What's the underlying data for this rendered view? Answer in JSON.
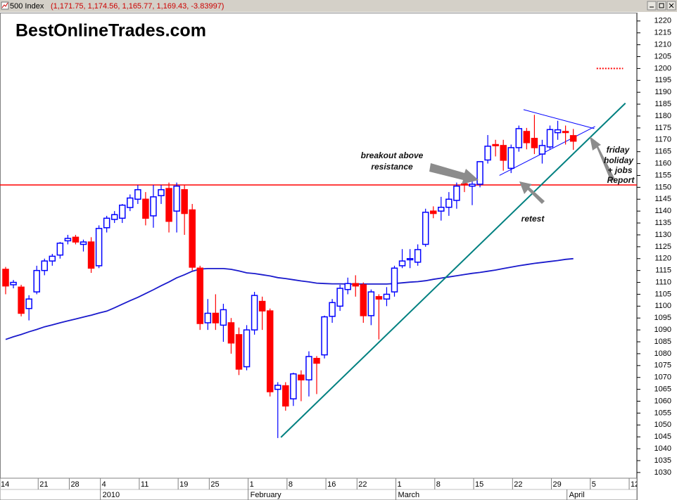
{
  "chart_data": {
    "type": "candlestick",
    "instrument": "500 Index",
    "quote": "(1,171.75, 1,174.56, 1,165.77, 1,169.43, -3.83997)",
    "watermark": "BestOnlineTrades.com",
    "categories": [
      "14",
      null,
      null,
      null,
      null,
      "21",
      null,
      null,
      null,
      "28",
      null,
      null,
      null,
      "4",
      null,
      null,
      null,
      null,
      "11",
      null,
      null,
      null,
      null,
      "19",
      null,
      null,
      null,
      "25",
      null,
      null,
      null,
      null,
      "1",
      null,
      null,
      null,
      null,
      "8",
      null,
      null,
      null,
      null,
      "16",
      null,
      null,
      null,
      "22",
      null,
      null,
      null,
      null,
      "1",
      null,
      null,
      null,
      null,
      "8",
      null,
      null,
      null,
      null,
      "15",
      null,
      null,
      null,
      null,
      "22",
      null,
      null,
      null,
      null,
      "29",
      null,
      null,
      null,
      null,
      "5",
      null,
      null,
      null,
      null,
      "12"
    ],
    "months": [
      null,
      null,
      null,
      null,
      null,
      null,
      null,
      null,
      null,
      null,
      null,
      null,
      null,
      "2010",
      null,
      null,
      null,
      null,
      null,
      null,
      null,
      null,
      null,
      null,
      null,
      null,
      null,
      null,
      null,
      null,
      null,
      null,
      "February",
      null,
      null,
      null,
      null,
      null,
      null,
      null,
      null,
      null,
      null,
      null,
      null,
      null,
      null,
      null,
      null,
      null,
      null,
      "March",
      null,
      null,
      null,
      null,
      null,
      null,
      null,
      null,
      null,
      null,
      null,
      null,
      null,
      null,
      null,
      null,
      null,
      null,
      null,
      null,
      null,
      "April",
      null,
      null,
      null,
      null,
      null,
      null,
      null
    ],
    "open": [
      1115.5,
      1109,
      1108,
      1099,
      1106,
      1115,
      1119,
      1121.5,
      1127.5,
      1129,
      1126,
      1127,
      1117,
      1133,
      1136.5,
      1137,
      1141.5,
      1145,
      1145,
      1138,
      1146.5,
      1149.5,
      1140,
      1149,
      1140.5,
      1116,
      1093,
      1097,
      1092,
      1093,
      1088,
      1074.5,
      1090,
      1102,
      1098,
      1065,
      1066.5,
      1061,
      1071,
      1069,
      1078,
      1079.5,
      1095.7,
      1100,
      1107,
      1109.5,
      1109,
      1096,
      1104,
      1103,
      1106,
      1117,
      1119.5,
      1118.5,
      1126,
      1140,
      1140,
      1141.6,
      1144.5,
      1151.5,
      1150.5,
      1151.3,
      1161.5,
      1168,
      1167.6,
      1158,
      1166.7,
      1173.5,
      1170.6,
      1164,
      1167,
      1173,
      1173.5,
      1171.75,
      null,
      null,
      null,
      null,
      null,
      null,
      null,
      null
    ],
    "high": [
      1116.5,
      1111,
      1109,
      1104.6,
      1117,
      1120,
      1122,
      1127,
      1130,
      1130,
      1128,
      1129,
      1134,
      1138,
      1140,
      1143,
      1147,
      1151,
      1148,
      1151,
      1151,
      1152,
      1152,
      1151,
      1143,
      1117,
      1103,
      1105,
      1101,
      1095,
      1091,
      1092,
      1106,
      1104,
      1099,
      1068,
      1068,
      1072,
      1073,
      1081,
      1079,
      1096,
      1103,
      1109,
      1112,
      1113,
      1110,
      1107,
      1105,
      1108,
      1117,
      1124,
      1124,
      1126,
      1141,
      1142,
      1146,
      1148,
      1152,
      1153,
      1153,
      1161,
      1172,
      1170,
      1170,
      1168,
      1176,
      1175,
      1180.5,
      1170,
      1176,
      1178,
      1176,
      1174.56,
      null,
      null,
      null,
      null,
      null,
      null,
      null,
      null
    ],
    "low": [
      1105,
      1107.5,
      1095.7,
      1094,
      1105,
      1113,
      1117,
      1120,
      1126,
      1126,
      1123,
      1114,
      1116,
      1131,
      1135,
      1135,
      1140,
      1143,
      1134,
      1133,
      1143,
      1131,
      1131,
      1130,
      1115,
      1090,
      1090,
      1090,
      1085,
      1080,
      1071,
      1073,
      1088,
      1090,
      1062,
      1044.5,
      1056,
      1058,
      1060,
      1062,
      1063,
      1078,
      1093,
      1098,
      1105,
      1104,
      1093,
      1092,
      1086,
      1100,
      1104,
      1116,
      1116,
      1117,
      1125,
      1137,
      1136,
      1138,
      1141,
      1148,
      1142.5,
      1150,
      1160,
      1163,
      1157,
      1156,
      1165,
      1166,
      1164,
      1160,
      1166,
      1170,
      1168,
      1165.77,
      null,
      null,
      null,
      null,
      null,
      null,
      null,
      null
    ],
    "close": [
      1108.5,
      1110,
      1097,
      1103,
      1115,
      1119,
      1121,
      1126.5,
      1128.5,
      1127,
      1127,
      1116,
      1132.7,
      1137,
      1138.5,
      1142.5,
      1145.5,
      1149,
      1137,
      1146,
      1149,
      1135.7,
      1150.5,
      1139,
      1116.4,
      1092.7,
      1097,
      1093,
      1098.5,
      1084.5,
      1073.5,
      1090,
      1104.5,
      1098,
      1064,
      1066.7,
      1058,
      1071.5,
      1069,
      1078.8,
      1076,
      1095.5,
      1101.5,
      1107.5,
      1109.5,
      1108.5,
      1096,
      1106,
      1103,
      1105,
      1116,
      1119,
      1120,
      1123.8,
      1139.5,
      1139,
      1141.6,
      1145,
      1150.5,
      1151,
      1151.3,
      1160.8,
      1167.3,
      1167.5,
      1161.4,
      1166.7,
      1174.7,
      1168.8,
      1166.7,
      1167.6,
      1174.3,
      1174.2,
      1173.3,
      1169.43,
      null,
      null,
      null,
      null,
      null,
      null,
      null,
      null
    ],
    "up_color": "#0000ff",
    "up_fill": "#ffffff",
    "down_color": "#ff0000",
    "moving_average": {
      "color": "#1a1acc",
      "values": [
        1086.0,
        1087.1,
        1088.1,
        1089.2,
        1090.2,
        1091.3,
        1092.1,
        1093.0,
        1093.8,
        1094.6,
        1095.4,
        1096.2,
        1097.1,
        1097.9,
        1099.3,
        1100.8,
        1102.3,
        1103.7,
        1105.3,
        1106.9,
        1108.6,
        1110.2,
        1111.9,
        1113.2,
        1114.7,
        1115.6,
        1115.8,
        1115.8,
        1115.8,
        1115.5,
        1114.8,
        1114.0,
        1113.7,
        1113.2,
        1112.7,
        1112.0,
        1111.6,
        1111.1,
        1110.6,
        1110.2,
        1109.7,
        1109.5,
        1109.4,
        1109.4,
        1109.3,
        1109.3,
        1109.3,
        1109.3,
        1109.3,
        1109.3,
        1109.5,
        1109.8,
        1110.1,
        1110.3,
        1110.7,
        1111.3,
        1111.8,
        1112.3,
        1112.8,
        1113.3,
        1113.8,
        1114.2,
        1114.7,
        1115.2,
        1115.8,
        1116.4,
        1117.0,
        1117.5,
        1118.0,
        1118.4,
        1118.8,
        1119.2,
        1119.7,
        1120.0,
        null,
        null,
        null,
        null,
        null,
        null,
        null,
        null
      ]
    },
    "resistance": {
      "value": 1151,
      "color": "#ff0000"
    },
    "trendline": {
      "x": [
        35.4,
        79.7
      ],
      "y": [
        1044.8,
        1185.4
      ],
      "color": "#008080"
    },
    "triangle_upper": {
      "x": [
        66.6,
        75.7
      ],
      "y": [
        1182.7,
        1174.7
      ],
      "color": "#0000ff"
    },
    "triangle_lower": {
      "x": [
        63.5,
        75.8
      ],
      "y": [
        1155,
        1175.6
      ],
      "color": "#0000ff"
    },
    "target": {
      "x": [
        76,
        79.4
      ],
      "y": 1200,
      "color": "#ff0000"
    },
    "ylim": [
      1027.6,
      1223.5
    ],
    "yticks": [
      1030,
      1035,
      1040,
      1045,
      1050,
      1055,
      1060,
      1065,
      1070,
      1075,
      1080,
      1085,
      1090,
      1095,
      1100,
      1105,
      1110,
      1115,
      1120,
      1125,
      1130,
      1135,
      1140,
      1145,
      1150,
      1155,
      1160,
      1165,
      1170,
      1175,
      1180,
      1185,
      1190,
      1195,
      1200,
      1205,
      1210,
      1215,
      1220
    ],
    "annotations": [
      {
        "lines": [
          "breakout above",
          "resistance"
        ]
      },
      {
        "lines": [
          "retest"
        ]
      },
      {
        "lines": [
          "friday",
          "holiday",
          "+ jobs",
          "Report"
        ]
      }
    ]
  }
}
